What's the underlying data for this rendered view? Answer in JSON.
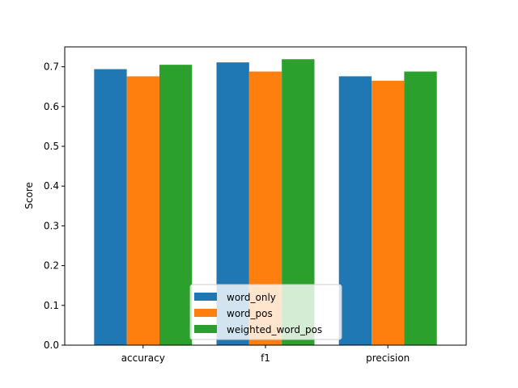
{
  "chart_data": {
    "type": "bar",
    "title": "",
    "xlabel": "",
    "ylabel": "Score",
    "categories": [
      "accuracy",
      "f1",
      "precision"
    ],
    "ylim": [
      0,
      0.75
    ],
    "yticks": [
      0.0,
      0.1,
      0.2,
      0.3,
      0.4,
      0.5,
      0.6,
      0.7
    ],
    "ytick_labels": [
      "0.0",
      "0.1",
      "0.2",
      "0.3",
      "0.4",
      "0.5",
      "0.6",
      "0.7"
    ],
    "grid": false,
    "legend_position": "lower-center",
    "series": [
      {
        "name": "word_only",
        "color": "#1f77b4",
        "values": [
          0.694,
          0.711,
          0.676
        ]
      },
      {
        "name": "word_pos",
        "color": "#ff7f0e",
        "values": [
          0.676,
          0.688,
          0.665
        ]
      },
      {
        "name": "weighted_word_pos",
        "color": "#2ca02c",
        "values": [
          0.705,
          0.719,
          0.688
        ]
      }
    ]
  }
}
